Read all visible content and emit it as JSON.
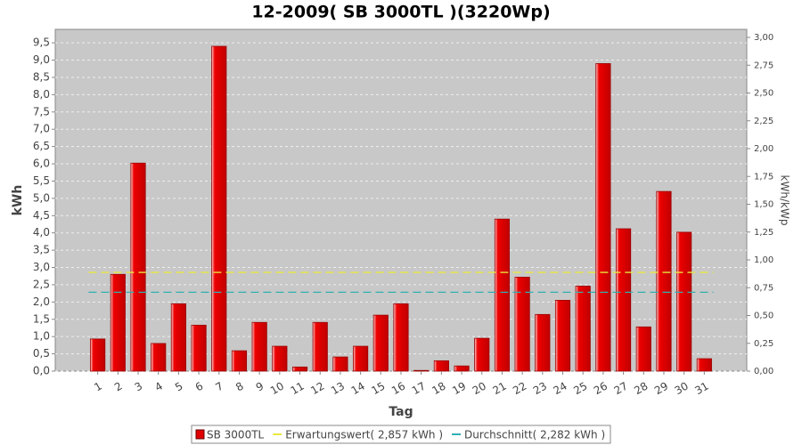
{
  "chart_data": {
    "type": "bar",
    "title": "12-2009( SB 3000TL )(3220Wp)",
    "x_label": "Tag",
    "y_label": "kWh",
    "y2_label": "kWh/kWp",
    "categories": [
      "1",
      "2",
      "3",
      "4",
      "5",
      "6",
      "7",
      "8",
      "9",
      "10",
      "11",
      "12",
      "13",
      "14",
      "15",
      "16",
      "17",
      "18",
      "19",
      "20",
      "21",
      "22",
      "23",
      "24",
      "25",
      "26",
      "27",
      "28",
      "29",
      "30",
      "31"
    ],
    "series": [
      {
        "name": "SB 3000TL",
        "color": "#e00000",
        "values": [
          0.93,
          2.8,
          6.02,
          0.8,
          1.95,
          1.33,
          9.4,
          0.59,
          1.41,
          0.72,
          0.12,
          1.41,
          0.41,
          0.72,
          1.62,
          1.95,
          0.02,
          0.3,
          0.15,
          0.95,
          4.4,
          2.72,
          1.64,
          2.05,
          2.46,
          8.9,
          4.12,
          1.28,
          5.2,
          4.02,
          0.36
        ]
      }
    ],
    "reference_lines": [
      {
        "name": "Erwartungswert( 2,857 kWh )",
        "value": 2.857,
        "color": "#e8e840"
      },
      {
        "name": "Durchschnitt( 2,282 kWh )",
        "value": 2.282,
        "color": "#30b0b0"
      }
    ],
    "ylim": [
      0,
      9.89
    ],
    "yticks": [
      {
        "value": 0,
        "label": "0,0"
      },
      {
        "value": 0.5,
        "label": "0,5"
      },
      {
        "value": 1,
        "label": "1,0"
      },
      {
        "value": 1.5,
        "label": "1,5"
      },
      {
        "value": 2,
        "label": "2,0"
      },
      {
        "value": 2.5,
        "label": "2,5"
      },
      {
        "value": 3,
        "label": "3,0"
      },
      {
        "value": 3.5,
        "label": "3,5"
      },
      {
        "value": 4,
        "label": "4,0"
      },
      {
        "value": 4.5,
        "label": "4,5"
      },
      {
        "value": 5,
        "label": "5,0"
      },
      {
        "value": 5.5,
        "label": "5,5"
      },
      {
        "value": 6,
        "label": "6,0"
      },
      {
        "value": 6.5,
        "label": "6,5"
      },
      {
        "value": 7,
        "label": "7,0"
      },
      {
        "value": 7.5,
        "label": "7,5"
      },
      {
        "value": 8,
        "label": "8,0"
      },
      {
        "value": 8.5,
        "label": "8,5"
      },
      {
        "value": 9,
        "label": "9,0"
      },
      {
        "value": 9.5,
        "label": "9,5"
      }
    ],
    "y2lim": [
      0,
      3.072
    ],
    "y2ticks": [
      {
        "value": 0,
        "label": "0,00"
      },
      {
        "value": 0.25,
        "label": "0,25"
      },
      {
        "value": 0.5,
        "label": "0,50"
      },
      {
        "value": 0.75,
        "label": "0,75"
      },
      {
        "value": 1,
        "label": "1,00"
      },
      {
        "value": 1.25,
        "label": "1,25"
      },
      {
        "value": 1.5,
        "label": "1,50"
      },
      {
        "value": 1.75,
        "label": "1,75"
      },
      {
        "value": 2,
        "label": "2,00"
      },
      {
        "value": 2.25,
        "label": "2,25"
      },
      {
        "value": 2.5,
        "label": "2,50"
      },
      {
        "value": 2.75,
        "label": "2,75"
      },
      {
        "value": 3,
        "label": "3,00"
      }
    ],
    "grid": true
  }
}
